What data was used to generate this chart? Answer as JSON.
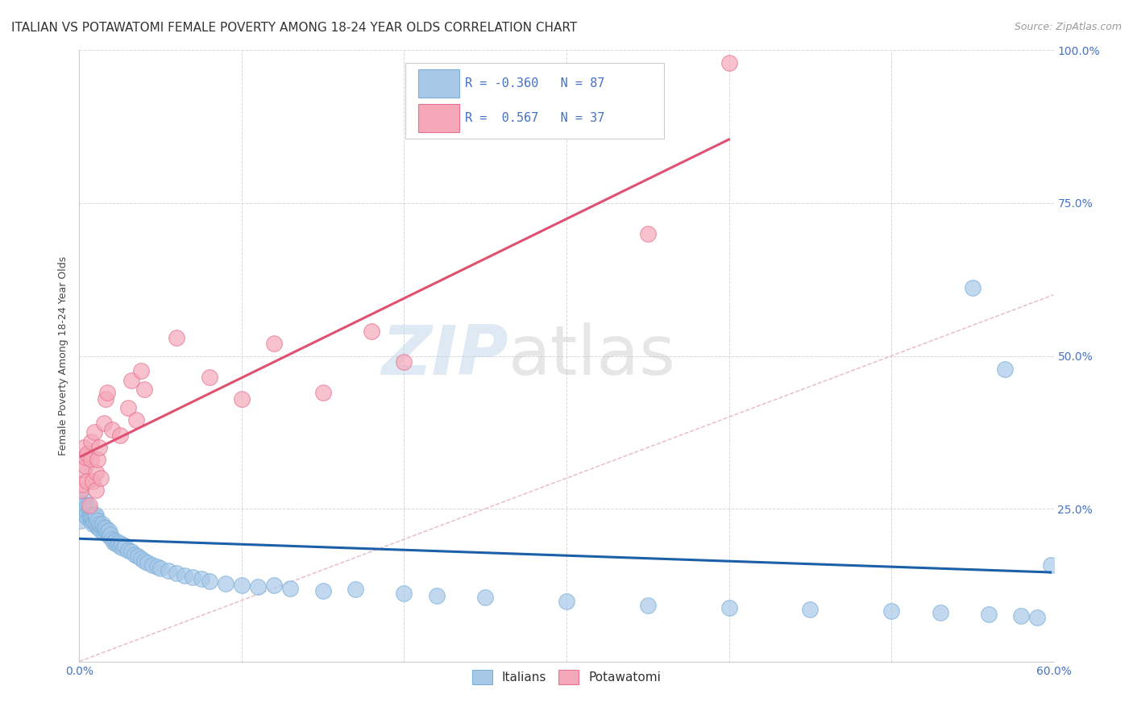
{
  "title": "ITALIAN VS POTAWATOMI FEMALE POVERTY AMONG 18-24 YEAR OLDS CORRELATION CHART",
  "source": "Source: ZipAtlas.com",
  "ylabel": "Female Poverty Among 18-24 Year Olds",
  "xlim": [
    0.0,
    0.6
  ],
  "ylim": [
    0.0,
    1.0
  ],
  "xticks": [
    0.0,
    0.1,
    0.2,
    0.3,
    0.4,
    0.5,
    0.6
  ],
  "xticklabels": [
    "0.0%",
    "",
    "",
    "",
    "",
    "",
    "60.0%"
  ],
  "yticks": [
    0.0,
    0.25,
    0.5,
    0.75,
    1.0
  ],
  "yticklabels_right": [
    "",
    "25.0%",
    "50.0%",
    "75.0%",
    "100.0%"
  ],
  "watermark_zip": "ZIP",
  "watermark_atlas": "atlas",
  "italian_color": "#a8c8e8",
  "potawatomi_color": "#f4a8b8",
  "italian_line_color": "#1a5fa8",
  "potawatomi_line_color": "#e05070",
  "R_italian": -0.36,
  "N_italian": 87,
  "R_potawatomi": 0.567,
  "N_potawatomi": 37,
  "legend_label_italian": "Italians",
  "legend_label_potawatomi": "Potawatomi",
  "background_color": "#ffffff",
  "grid_color": "#d8d8d8",
  "title_fontsize": 11,
  "axis_label_fontsize": 9,
  "tick_fontsize": 10,
  "italian_x": [
    0.001,
    0.002,
    0.002,
    0.003,
    0.003,
    0.004,
    0.004,
    0.005,
    0.005,
    0.005,
    0.006,
    0.006,
    0.006,
    0.007,
    0.007,
    0.007,
    0.008,
    0.008,
    0.008,
    0.009,
    0.009,
    0.01,
    0.01,
    0.01,
    0.011,
    0.011,
    0.012,
    0.012,
    0.013,
    0.013,
    0.014,
    0.014,
    0.015,
    0.015,
    0.016,
    0.016,
    0.017,
    0.018,
    0.018,
    0.019,
    0.02,
    0.021,
    0.022,
    0.023,
    0.024,
    0.025,
    0.026,
    0.027,
    0.028,
    0.03,
    0.032,
    0.034,
    0.036,
    0.038,
    0.04,
    0.042,
    0.045,
    0.048,
    0.05,
    0.055,
    0.06,
    0.065,
    0.07,
    0.075,
    0.08,
    0.09,
    0.1,
    0.11,
    0.12,
    0.13,
    0.15,
    0.17,
    0.2,
    0.22,
    0.25,
    0.3,
    0.35,
    0.4,
    0.45,
    0.5,
    0.53,
    0.55,
    0.56,
    0.57,
    0.58,
    0.59,
    0.598
  ],
  "italian_y": [
    0.23,
    0.245,
    0.26,
    0.255,
    0.265,
    0.25,
    0.24,
    0.235,
    0.245,
    0.255,
    0.24,
    0.235,
    0.25,
    0.23,
    0.24,
    0.235,
    0.23,
    0.225,
    0.235,
    0.228,
    0.24,
    0.225,
    0.235,
    0.24,
    0.22,
    0.23,
    0.218,
    0.225,
    0.215,
    0.222,
    0.218,
    0.225,
    0.21,
    0.22,
    0.215,
    0.218,
    0.212,
    0.205,
    0.215,
    0.208,
    0.2,
    0.195,
    0.198,
    0.192,
    0.195,
    0.188,
    0.192,
    0.185,
    0.19,
    0.182,
    0.18,
    0.175,
    0.172,
    0.168,
    0.165,
    0.162,
    0.158,
    0.155,
    0.152,
    0.148,
    0.145,
    0.14,
    0.138,
    0.135,
    0.132,
    0.128,
    0.125,
    0.122,
    0.125,
    0.12,
    0.115,
    0.118,
    0.112,
    0.108,
    0.105,
    0.098,
    0.092,
    0.088,
    0.085,
    0.082,
    0.08,
    0.612,
    0.078,
    0.478,
    0.075,
    0.072,
    0.158
  ],
  "potawatomi_x": [
    0.001,
    0.002,
    0.003,
    0.003,
    0.004,
    0.004,
    0.005,
    0.005,
    0.006,
    0.007,
    0.007,
    0.008,
    0.009,
    0.01,
    0.01,
    0.011,
    0.012,
    0.013,
    0.015,
    0.016,
    0.017,
    0.02,
    0.025,
    0.03,
    0.032,
    0.035,
    0.038,
    0.04,
    0.06,
    0.08,
    0.1,
    0.12,
    0.15,
    0.18,
    0.2,
    0.35,
    0.4
  ],
  "potawatomi_y": [
    0.28,
    0.29,
    0.315,
    0.35,
    0.32,
    0.335,
    0.295,
    0.34,
    0.255,
    0.33,
    0.36,
    0.295,
    0.375,
    0.28,
    0.31,
    0.33,
    0.35,
    0.3,
    0.39,
    0.43,
    0.44,
    0.38,
    0.37,
    0.415,
    0.46,
    0.395,
    0.475,
    0.445,
    0.53,
    0.465,
    0.43,
    0.52,
    0.44,
    0.54,
    0.49,
    0.7,
    0.98
  ]
}
